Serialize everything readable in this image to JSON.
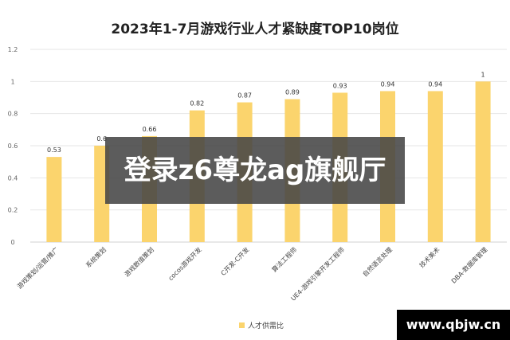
{
  "chart_data": {
    "type": "bar",
    "title": "2023年1-7月游戏行业人才紧缺度TOP10岗位",
    "categories": [
      "游戏策划/运营/推广",
      "系统策划",
      "游戏数值策划",
      "cocos游戏开发",
      "C开发-C开发",
      "算法工程师",
      "UE4-游戏引擎开发工程师",
      "自然语言处理",
      "技术美术",
      "DBA-数据库管理"
    ],
    "series": [
      {
        "name": "人才供需比",
        "values": [
          0.53,
          0.6,
          0.66,
          0.82,
          0.87,
          0.89,
          0.93,
          0.94,
          0.94,
          1.0
        ]
      }
    ],
    "data_labels": [
      "0.53",
      "0.6",
      "0.66",
      "0.82",
      "0.87",
      "0.89",
      "0.93",
      "0.94",
      "0.94",
      "1"
    ],
    "yticks": [
      "0",
      "0.2",
      "0.4",
      "0.6",
      "0.8",
      "1",
      "1.2"
    ],
    "ylim": [
      0,
      1.2
    ],
    "grid": true,
    "legend_position": "bottom-center",
    "bar_color": "#FBD46D"
  },
  "overlay": {
    "text": "登录z6尊龙ag旗舰厅"
  },
  "watermark": {
    "text": "www.qbjw.cn"
  }
}
